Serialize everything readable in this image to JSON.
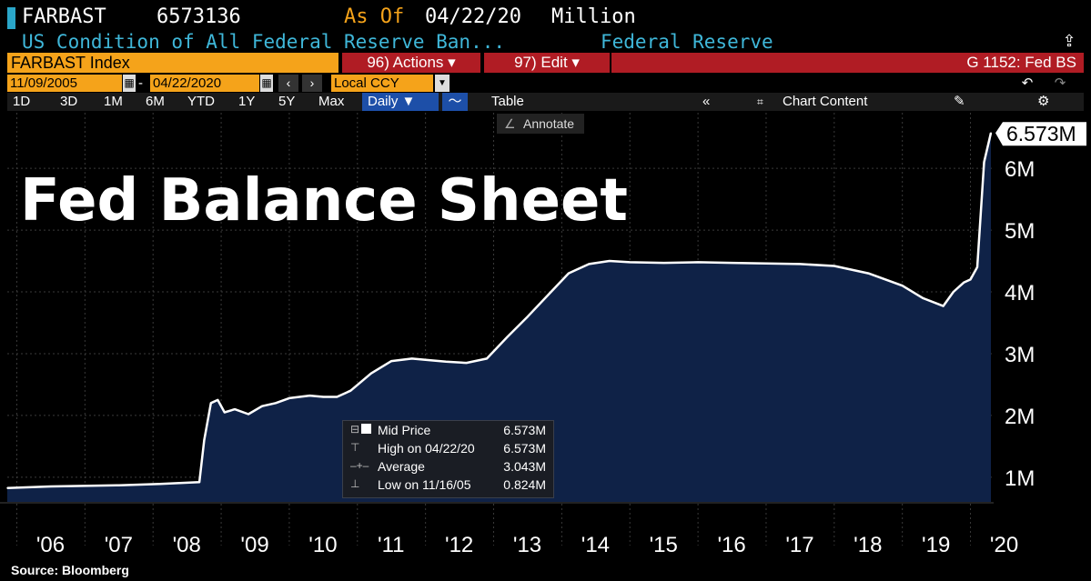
{
  "header": {
    "ticker": "FARBAST",
    "value": "6573136",
    "as_of_label": "As Of",
    "as_of_date": "04/22/20",
    "unit": "Million",
    "description": "US Condition of All Federal Reserve Ban...",
    "source_name": "Federal Reserve"
  },
  "toolbar": {
    "index_label": "FARBAST Index",
    "actions_label": "96) Actions ▾",
    "edit_label": "97) Edit ▾",
    "function_label": "G 1152: Fed BS",
    "start_date": "11/09/2005",
    "end_date": "04/22/2020",
    "currency": "Local CCY",
    "periods": [
      "1D",
      "3D",
      "1M",
      "6M",
      "YTD",
      "1Y",
      "5Y",
      "Max"
    ],
    "frequency": "Daily ▼",
    "table_label": "Table",
    "chart_content_label": "Chart Content",
    "annotate_label": "Annotate"
  },
  "chart_data": {
    "type": "area",
    "title": "Fed Balance Sheet",
    "last_value_label": "6.573M",
    "x": [
      2005.86,
      2006.5,
      2007.5,
      2008.1,
      2008.68,
      2008.75,
      2008.85,
      2008.95,
      2009.05,
      2009.2,
      2009.4,
      2009.6,
      2009.8,
      2010.0,
      2010.3,
      2010.5,
      2010.7,
      2010.9,
      2011.2,
      2011.5,
      2011.8,
      2012.0,
      2012.3,
      2012.6,
      2012.9,
      2013.2,
      2013.5,
      2013.8,
      2014.1,
      2014.4,
      2014.7,
      2015.0,
      2015.5,
      2016.0,
      2016.5,
      2017.0,
      2017.5,
      2018.0,
      2018.5,
      2019.0,
      2019.3,
      2019.6,
      2019.75,
      2019.9,
      2020.0,
      2020.1,
      2020.2,
      2020.3
    ],
    "y": [
      0.824,
      0.85,
      0.87,
      0.89,
      0.92,
      1.6,
      2.2,
      2.25,
      2.05,
      2.1,
      2.02,
      2.15,
      2.2,
      2.28,
      2.32,
      2.3,
      2.3,
      2.4,
      2.68,
      2.88,
      2.92,
      2.9,
      2.87,
      2.85,
      2.92,
      3.27,
      3.6,
      3.95,
      4.3,
      4.45,
      4.5,
      4.48,
      4.47,
      4.48,
      4.47,
      4.46,
      4.45,
      4.42,
      4.3,
      4.1,
      3.9,
      3.77,
      4.0,
      4.15,
      4.2,
      4.4,
      6.1,
      6.573
    ],
    "x_ticks": [
      "'06",
      "'07",
      "'08",
      "'09",
      "'10",
      "'11",
      "'12",
      "'13",
      "'14",
      "'15",
      "'16",
      "'17",
      "'18",
      "'19",
      "'20"
    ],
    "y_ticks": [
      "1M",
      "2M",
      "3M",
      "4M",
      "5M",
      "6M"
    ],
    "ylim": [
      0.6,
      6.9
    ],
    "grid": true,
    "colors": {
      "fill": "#0f2247",
      "line": "#ffffff",
      "grid": "#3a3a3a",
      "accent_orange": "#f5a31a",
      "accent_red": "#b01c24",
      "accent_cyan": "#3fb7d9"
    }
  },
  "tooltip": {
    "rows": [
      {
        "label": "Mid Price",
        "value": "6.573M"
      },
      {
        "label": "High on 04/22/20",
        "value": "6.573M"
      },
      {
        "label": "Average",
        "value": "3.043M"
      },
      {
        "label": "Low on 11/16/05",
        "value": "0.824M"
      }
    ]
  },
  "footer": {
    "source": "Source: Bloomberg"
  }
}
